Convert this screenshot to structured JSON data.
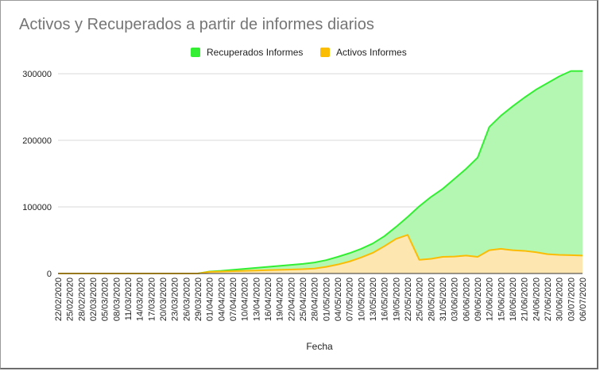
{
  "chart_data": {
    "type": "area",
    "title": "Activos y Recuperados a partir de informes diarios",
    "xlabel": "Fecha",
    "ylabel": "",
    "ylim": [
      0,
      300000
    ],
    "yticks": [
      "0",
      "100000",
      "200000",
      "300000"
    ],
    "grid": true,
    "legend_position": "top",
    "categories": [
      "22/02/2020",
      "25/02/2020",
      "28/02/2020",
      "02/03/2020",
      "05/03/2020",
      "08/03/2020",
      "11/03/2020",
      "14/03/2020",
      "17/03/2020",
      "20/03/2020",
      "23/03/2020",
      "26/03/2020",
      "29/03/2020",
      "01/04/2020",
      "04/04/2020",
      "07/04/2020",
      "10/04/2020",
      "13/04/2020",
      "16/04/2020",
      "19/04/2020",
      "22/04/2020",
      "25/04/2020",
      "28/04/2020",
      "01/05/2020",
      "04/05/2020",
      "07/05/2020",
      "10/05/2020",
      "13/05/2020",
      "16/05/2020",
      "19/05/2020",
      "22/05/2020",
      "25/05/2020",
      "28/05/2020",
      "31/05/2020",
      "03/06/2020",
      "06/06/2020",
      "09/06/2020",
      "12/06/2020",
      "15/06/2020",
      "18/06/2020",
      "21/06/2020",
      "24/06/2020",
      "27/06/2020",
      "30/06/2020",
      "03/07/2020",
      "06/07/2020"
    ],
    "series": [
      {
        "name": "Recuperados Informes",
        "color": "#33ee33",
        "fill": "#b3f7b3",
        "values": [
          0,
          0,
          0,
          0,
          0,
          0,
          0,
          0,
          0,
          0,
          0,
          0,
          0,
          3000,
          4000,
          5500,
          7000,
          8500,
          10000,
          11500,
          13000,
          14500,
          16500,
          20000,
          25000,
          30500,
          37000,
          45000,
          56000,
          70000,
          85000,
          101000,
          115000,
          127000,
          142000,
          157000,
          174000,
          220000,
          237000,
          251000,
          264000,
          276000,
          286000,
          296000,
          305000,
          312000
        ]
      },
      {
        "name": "Activos Informes",
        "color": "#fbbc04",
        "fill": "#fde6b0",
        "values": [
          0,
          0,
          0,
          0,
          0,
          0,
          0,
          0,
          0,
          0,
          0,
          0,
          0,
          2500,
          3000,
          3500,
          4000,
          4500,
          5000,
          5500,
          6000,
          6500,
          7500,
          10000,
          13500,
          18000,
          24000,
          31000,
          41000,
          52000,
          58000,
          20500,
          22000,
          25000,
          25500,
          27000,
          25000,
          35000,
          37000,
          35000,
          34000,
          32000,
          29000,
          28000,
          27500,
          27000
        ]
      }
    ]
  }
}
